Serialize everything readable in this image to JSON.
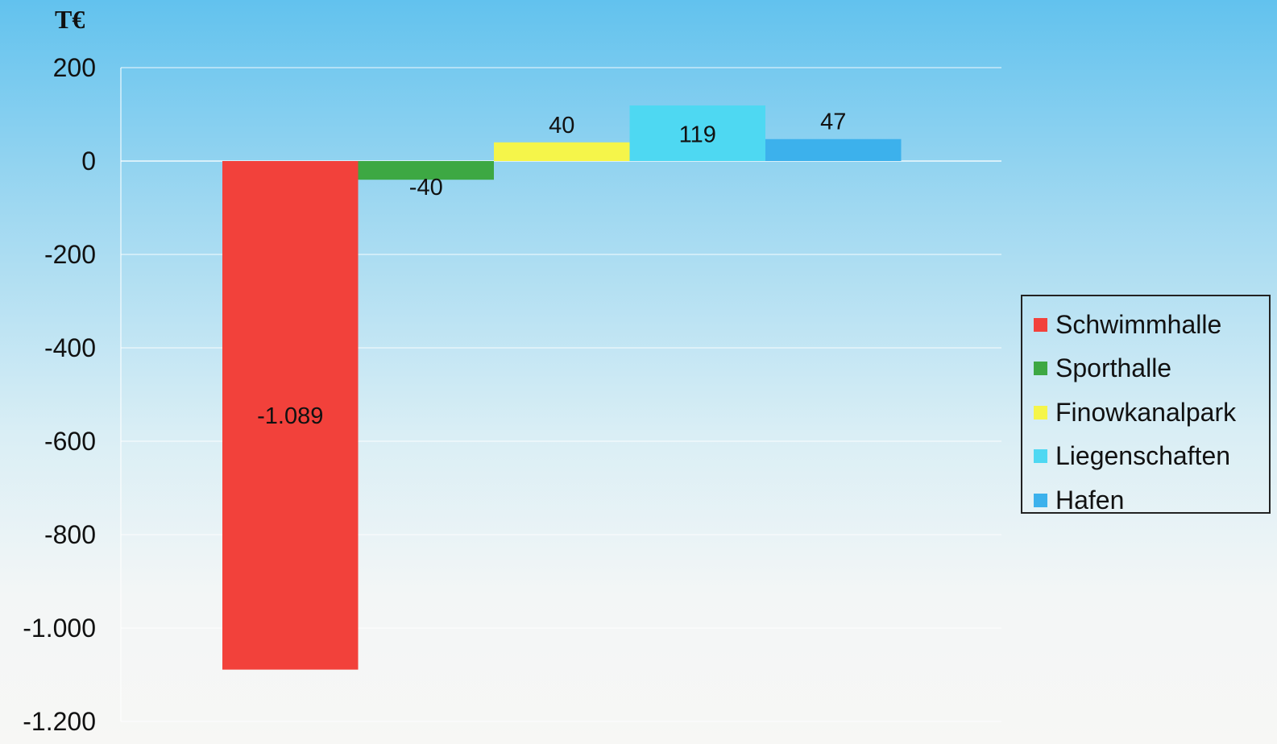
{
  "chart_data": {
    "type": "bar",
    "unit": "T€",
    "categories": [
      "Schwimmhalle",
      "Sporthalle",
      "Finowkanalpark",
      "Liegenschaften",
      "Hafen"
    ],
    "values": [
      -1089,
      -40,
      40,
      119,
      47
    ],
    "value_labels": [
      "-1.089",
      "-40",
      "40",
      "119",
      "47"
    ],
    "colors": [
      "#f2413b",
      "#3da843",
      "#f5f54a",
      "#4ed8f2",
      "#3cb1ec"
    ],
    "ylim": [
      -1200,
      200
    ],
    "yticks": [
      200,
      0,
      -200,
      -400,
      -600,
      -800,
      -1000,
      -1200
    ],
    "ytick_labels": [
      "200",
      "0",
      "-200",
      "-400",
      "-600",
      "-800",
      "-1.000",
      "-1.200"
    ],
    "grid": true,
    "legend_position": "right"
  }
}
